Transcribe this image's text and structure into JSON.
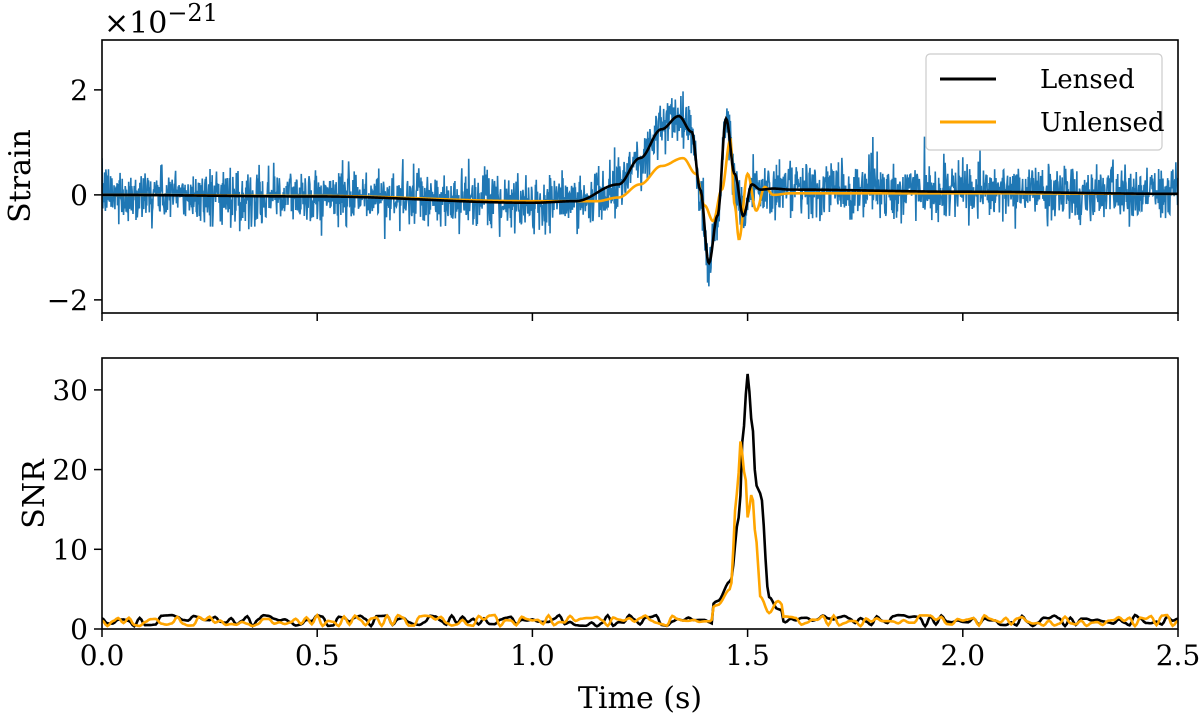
{
  "chart_data": [
    {
      "type": "line",
      "panel": "top",
      "ylabel": "Strain",
      "exponent_label": "×10−21",
      "exponent_base": "×10",
      "exponent_power": "−21",
      "xlim": [
        0.0,
        2.5
      ],
      "ylim": [
        -2.25,
        2.95
      ],
      "yticks": [
        -2,
        0,
        2
      ],
      "ytick_labels": [
        "−2",
        "0",
        "2"
      ],
      "xticks": [
        0.0,
        0.5,
        1.0,
        1.5,
        2.0,
        2.5
      ],
      "legend": {
        "placement": "top-right",
        "entries": [
          "Lensed",
          "Unlensed"
        ]
      },
      "series": [
        {
          "name": "Data",
          "color": "#1f77b4",
          "kind": "noisy-strain",
          "noise_amplitude": 0.45,
          "samples": 2500
        },
        {
          "name": "Lensed",
          "color": "#000000",
          "x": [
            0.0,
            0.5,
            1.0,
            1.1,
            1.2,
            1.25,
            1.3,
            1.34,
            1.37,
            1.39,
            1.41,
            1.43,
            1.45,
            1.47,
            1.49,
            1.51,
            1.53,
            1.56,
            1.6,
            2.0,
            2.5
          ],
          "y": [
            0.0,
            -0.03,
            -0.15,
            -0.12,
            0.2,
            0.7,
            1.25,
            1.5,
            1.2,
            0.1,
            -1.3,
            -0.4,
            1.45,
            0.4,
            -0.4,
            0.2,
            0.1,
            0.12,
            0.1,
            0.06,
            0.02
          ]
        },
        {
          "name": "Unlensed",
          "color": "#ffa500",
          "x": [
            0.0,
            0.5,
            1.0,
            1.15,
            1.2,
            1.25,
            1.3,
            1.35,
            1.38,
            1.4,
            1.42,
            1.44,
            1.46,
            1.47,
            1.48,
            1.5,
            1.52,
            1.54,
            1.56,
            1.6,
            2.0,
            2.5
          ],
          "y": [
            0.0,
            -0.02,
            -0.12,
            -0.12,
            -0.05,
            0.2,
            0.55,
            0.7,
            0.4,
            -0.2,
            -0.5,
            0.1,
            1.05,
            -0.2,
            -0.85,
            0.4,
            -0.3,
            0.15,
            0.0,
            0.03,
            0.03,
            0.02
          ]
        }
      ]
    },
    {
      "type": "line",
      "panel": "bottom",
      "xlabel": "Time (s)",
      "ylabel": "SNR",
      "xlim": [
        0.0,
        2.5
      ],
      "ylim": [
        0,
        34
      ],
      "yticks": [
        0,
        10,
        20,
        30
      ],
      "ytick_labels": [
        "0",
        "10",
        "20",
        "30"
      ],
      "xticks": [
        0.0,
        0.5,
        1.0,
        1.5,
        2.0,
        2.5
      ],
      "xtick_labels": [
        "0.0",
        "0.5",
        "1.0",
        "1.5",
        "2.0",
        "2.5"
      ],
      "series": [
        {
          "name": "Lensed",
          "color": "#000000",
          "baseline_noise": 1.6,
          "x": [
            0.0,
            1.4,
            1.43,
            1.46,
            1.48,
            1.49,
            1.5,
            1.51,
            1.52,
            1.53,
            1.55,
            1.57,
            1.6,
            2.5
          ],
          "y": [
            1.5,
            2.0,
            3.5,
            6.0,
            14.0,
            25.0,
            32.0,
            26.0,
            18.0,
            17.0,
            4.0,
            2.5,
            1.5,
            1.5
          ]
        },
        {
          "name": "Unlensed",
          "color": "#ffa500",
          "baseline_noise": 1.6,
          "x": [
            0.0,
            1.4,
            1.43,
            1.46,
            1.475,
            1.485,
            1.49,
            1.495,
            1.5,
            1.51,
            1.52,
            1.53,
            1.55,
            1.57,
            1.6,
            2.5
          ],
          "y": [
            1.5,
            2.0,
            3.0,
            5.0,
            17.0,
            24.0,
            20.0,
            19.0,
            14.0,
            17.0,
            11.0,
            4.0,
            2.0,
            3.5,
            1.5,
            1.5
          ]
        }
      ]
    }
  ]
}
